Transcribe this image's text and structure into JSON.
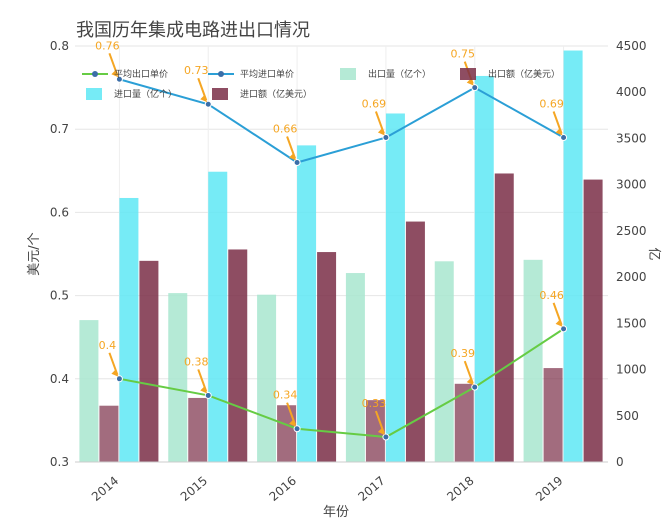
{
  "chart_data": {
    "type": "bar+line",
    "title": "我国历年集成电路进出口情况",
    "xlabel": "年份",
    "ylabel_left": "美元/个",
    "ylabel_right": "亿",
    "categories": [
      "2014",
      "2015",
      "2016",
      "2017",
      "2018",
      "2019"
    ],
    "ylim_left": [
      0.3,
      0.8
    ],
    "yticks_left": [
      "0.3",
      "0.4",
      "0.5",
      "0.6",
      "0.7",
      "0.8"
    ],
    "ylim_right": [
      0,
      4500
    ],
    "yticks_right": [
      "0",
      "500",
      "1000",
      "1500",
      "2000",
      "2500",
      "3000",
      "3500",
      "4000",
      "4500"
    ],
    "bar_series": [
      {
        "name": "出口量（亿个）",
        "color": "#a8e6cf",
        "values": [
          1535,
          1827,
          1810,
          2044,
          2171,
          2187
        ]
      },
      {
        "name": "出口额（亿美元）",
        "color": "#7a2e47",
        "values": [
          609,
          693,
          614,
          669,
          846,
          1016
        ]
      },
      {
        "name": "进口量（亿个）",
        "color": "#5ee8f5",
        "values": [
          2856,
          3140,
          3425,
          3770,
          4176,
          4451
        ]
      },
      {
        "name": "进口额（亿美元）",
        "color": "#7a2e47",
        "values": [
          2176,
          2299,
          2271,
          2601,
          3121,
          3055
        ]
      }
    ],
    "line_series": [
      {
        "name": "平均出口单价",
        "color": "#66cc44",
        "values": [
          0.4,
          0.38,
          0.34,
          0.33,
          0.39,
          0.46
        ],
        "labels": [
          "0.4",
          "0.38",
          "0.34",
          "0.33",
          "0.39",
          "0.46"
        ]
      },
      {
        "name": "平均进口单价",
        "color": "#2b9fd6",
        "values": [
          0.76,
          0.73,
          0.66,
          0.69,
          0.75,
          0.69
        ],
        "labels": [
          "0.76",
          "0.73",
          "0.66",
          "0.69",
          "0.75",
          "0.69"
        ]
      }
    ],
    "legend_position": "top"
  }
}
